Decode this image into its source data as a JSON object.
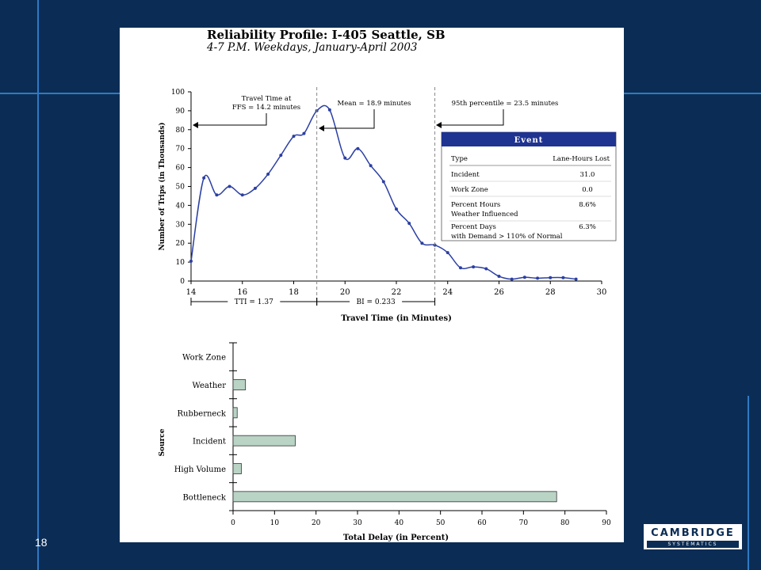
{
  "slide": {
    "page_number": "18"
  },
  "logo": {
    "main": "CAMBRIDGE",
    "sub": "SYSTEMATICS"
  },
  "colors": {
    "background": "#0b2d55",
    "accent": "#2f79c4",
    "line": "#2b3fa3",
    "bar_fill": "#b9d3c5",
    "event_header": "#1f3391"
  },
  "chart": {
    "title": "Reliability Profile: I-405 Seattle, SB",
    "subtitle": "4-7 P.M. Weekdays, January-April 2003"
  },
  "chart_data": [
    {
      "type": "line",
      "xlabel": "Travel Time (in Minutes)",
      "ylabel": "Number of Trips (in Thousands)",
      "xlim": [
        14,
        30
      ],
      "ylim": [
        0,
        100
      ],
      "x_ticks": [
        14,
        16,
        18,
        20,
        22,
        24,
        26,
        28,
        30
      ],
      "y_ticks": [
        0,
        10,
        20,
        30,
        40,
        50,
        60,
        70,
        80,
        90,
        100
      ],
      "grid": false,
      "x": [
        14,
        14.5,
        15,
        15.5,
        16,
        16.5,
        17,
        17.5,
        18,
        18.4,
        18.9,
        19.4,
        20,
        20.5,
        21,
        21.5,
        22,
        22.5,
        23,
        23.5,
        24,
        24.5,
        25,
        25.5,
        26,
        26.5,
        27,
        27.5,
        28,
        28.5,
        29
      ],
      "y": [
        10.5,
        54.5,
        45.5,
        50,
        45.5,
        49,
        56.5,
        66.5,
        76.5,
        78,
        90,
        90.5,
        65,
        70,
        61,
        52.5,
        38,
        30.5,
        20,
        19,
        15,
        7,
        7.5,
        6.5,
        2.5,
        1,
        2,
        1.5,
        1.8,
        1.8,
        1
      ],
      "annotations": [
        {
          "text_lines": [
            "Travel Time at",
            "FFS = 14.2 minutes"
          ],
          "x": 14.2
        },
        {
          "text_lines": [
            "Mean = 18.9 minutes"
          ],
          "x": 18.9
        },
        {
          "text_lines": [
            "95th percentile = 23.5 minutes"
          ],
          "x": 23.5
        }
      ],
      "intervals": [
        {
          "label": "TTI = 1.37",
          "from": 14,
          "to": 18.9
        },
        {
          "label": "BI = 0.233",
          "from": 18.9,
          "to": 23.5
        }
      ],
      "event_table": {
        "title": "Event",
        "headers": [
          "Type",
          "Lane-Hours Lost"
        ],
        "rows": [
          {
            "type_lines": [
              "Incident"
            ],
            "value": "31.0"
          },
          {
            "type_lines": [
              "Work Zone"
            ],
            "value": "0.0"
          },
          {
            "type_lines": [
              "Percent Hours",
              "Weather Influenced"
            ],
            "value": "8.6%"
          },
          {
            "type_lines": [
              "Percent Days",
              "with Demand > 110% of Normal"
            ],
            "value": "6.3%"
          }
        ]
      }
    },
    {
      "type": "bar",
      "orientation": "horizontal",
      "ylabel": "Source",
      "xlabel": "Total Delay (in Percent)",
      "xlim": [
        0,
        90
      ],
      "x_ticks": [
        0,
        10,
        20,
        30,
        40,
        50,
        60,
        70,
        80,
        90
      ],
      "categories": [
        "Work Zone",
        "Weather",
        "Rubberneck",
        "Incident",
        "High Volume",
        "Bottleneck"
      ],
      "values": [
        0,
        3,
        1,
        15,
        2,
        78
      ]
    }
  ]
}
